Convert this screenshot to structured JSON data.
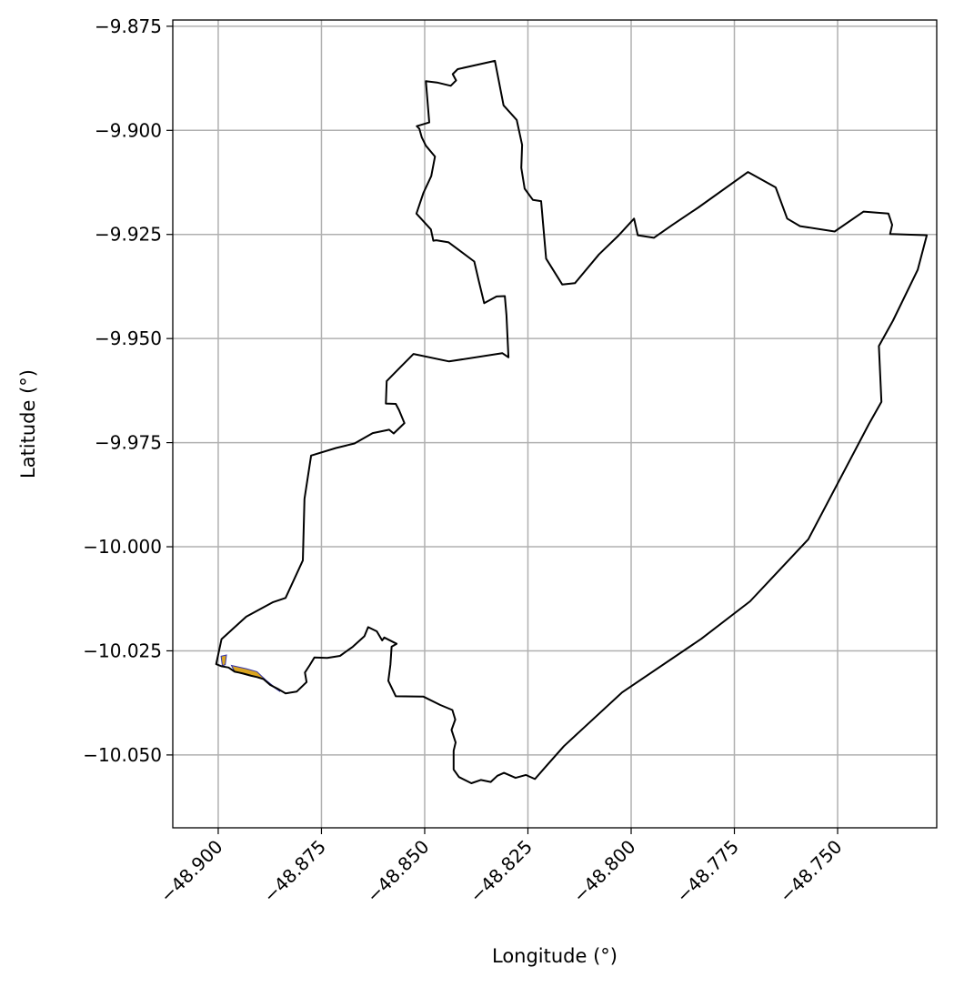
{
  "chart_data": {
    "type": "map",
    "xlabel": "Longitude (°)",
    "ylabel": "Latitude (°)",
    "xlim": [
      -48.911,
      -48.726
    ],
    "ylim": [
      -10.0675,
      -9.8735
    ],
    "grid": true,
    "x_ticks": [
      {
        "value": -48.9,
        "label": "−48.900"
      },
      {
        "value": -48.875,
        "label": "−48.875"
      },
      {
        "value": -48.85,
        "label": "−48.850"
      },
      {
        "value": -48.825,
        "label": "−48.825"
      },
      {
        "value": -48.8,
        "label": "−48.800"
      },
      {
        "value": -48.775,
        "label": "−48.775"
      },
      {
        "value": -48.75,
        "label": "−48.750"
      }
    ],
    "y_ticks": [
      {
        "value": -9.875,
        "label": "−9.875"
      },
      {
        "value": -9.9,
        "label": "−9.900"
      },
      {
        "value": -9.925,
        "label": "−9.925"
      },
      {
        "value": -9.95,
        "label": "−9.950"
      },
      {
        "value": -9.975,
        "label": "−9.975"
      },
      {
        "value": -10.0,
        "label": "−10.000"
      },
      {
        "value": -10.025,
        "label": "−10.025"
      },
      {
        "value": -10.05,
        "label": "−10.050"
      }
    ],
    "boundary": {
      "stroke": "#000000",
      "fill": "none",
      "coords": [
        [
          -48.9005,
          -10.0282
        ],
        [
          -48.8992,
          -10.0222
        ],
        [
          -48.8932,
          -10.0168
        ],
        [
          -48.8867,
          -10.0133
        ],
        [
          -48.8837,
          -10.0123
        ],
        [
          -48.8795,
          -10.0033
        ],
        [
          -48.8791,
          -9.9885
        ],
        [
          -48.8775,
          -9.9781
        ],
        [
          -48.8715,
          -9.9763
        ],
        [
          -48.867,
          -9.9752
        ],
        [
          -48.8626,
          -9.9727
        ],
        [
          -48.8586,
          -9.9719
        ],
        [
          -48.8575,
          -9.9728
        ],
        [
          -48.8549,
          -9.9703
        ],
        [
          -48.8562,
          -9.9672
        ],
        [
          -48.857,
          -9.9657
        ],
        [
          -48.8594,
          -9.9656
        ],
        [
          -48.8592,
          -9.9602
        ],
        [
          -48.8562,
          -9.9572
        ],
        [
          -48.8527,
          -9.9537
        ],
        [
          -48.8441,
          -9.9555
        ],
        [
          -48.8312,
          -9.9535
        ],
        [
          -48.8297,
          -9.9545
        ],
        [
          -48.8302,
          -9.9444
        ],
        [
          -48.8306,
          -9.9398
        ],
        [
          -48.8326,
          -9.9399
        ],
        [
          -48.8356,
          -9.9415
        ],
        [
          -48.8369,
          -9.9362
        ],
        [
          -48.838,
          -9.9315
        ],
        [
          -48.8442,
          -9.9269
        ],
        [
          -48.8472,
          -9.9264
        ],
        [
          -48.8479,
          -9.9265
        ],
        [
          -48.8485,
          -9.9238
        ],
        [
          -48.852,
          -9.92
        ],
        [
          -48.8503,
          -9.915
        ],
        [
          -48.8484,
          -9.911
        ],
        [
          -48.8475,
          -9.9063
        ],
        [
          -48.8497,
          -9.9037
        ],
        [
          -48.8507,
          -9.9017
        ],
        [
          -48.8513,
          -9.8996
        ],
        [
          -48.8519,
          -9.899
        ],
        [
          -48.8489,
          -9.8981
        ],
        [
          -48.8497,
          -9.8882
        ],
        [
          -48.847,
          -9.8885
        ],
        [
          -48.8437,
          -9.8893
        ],
        [
          -48.8424,
          -9.888
        ],
        [
          -48.8432,
          -9.8865
        ],
        [
          -48.842,
          -9.8853
        ],
        [
          -48.833,
          -9.8833
        ],
        [
          -48.8309,
          -9.894
        ],
        [
          -48.8277,
          -9.8975
        ],
        [
          -48.8264,
          -9.9035
        ],
        [
          -48.8266,
          -9.909
        ],
        [
          -48.8258,
          -9.914
        ],
        [
          -48.8238,
          -9.9167
        ],
        [
          -48.8218,
          -9.917
        ],
        [
          -48.8206,
          -9.9308
        ],
        [
          -48.8167,
          -9.937
        ],
        [
          -48.8136,
          -9.9367
        ],
        [
          -48.8078,
          -9.9298
        ],
        [
          -48.803,
          -9.9252
        ],
        [
          -48.7993,
          -9.9212
        ],
        [
          -48.7984,
          -9.9252
        ],
        [
          -48.7945,
          -9.9258
        ],
        [
          -48.79,
          -9.9227
        ],
        [
          -48.7837,
          -9.9185
        ],
        [
          -48.7717,
          -9.91
        ],
        [
          -48.765,
          -9.9137
        ],
        [
          -48.7622,
          -9.9212
        ],
        [
          -48.7591,
          -9.923
        ],
        [
          -48.7507,
          -9.9243
        ],
        [
          -48.7437,
          -9.9195
        ],
        [
          -48.7377,
          -9.92
        ],
        [
          -48.7368,
          -9.9227
        ],
        [
          -48.7373,
          -9.9249
        ],
        [
          -48.7284,
          -9.9252
        ],
        [
          -48.7306,
          -9.9335
        ],
        [
          -48.7366,
          -9.9457
        ],
        [
          -48.74,
          -9.9518
        ],
        [
          -48.7394,
          -9.9652
        ],
        [
          -48.7424,
          -9.9705
        ],
        [
          -48.7571,
          -9.9982
        ],
        [
          -48.7712,
          -10.0131
        ],
        [
          -48.783,
          -10.0221
        ],
        [
          -48.8022,
          -10.035
        ],
        [
          -48.8163,
          -10.0479
        ],
        [
          -48.8206,
          -10.0527
        ],
        [
          -48.8233,
          -10.0558
        ],
        [
          -48.8255,
          -10.0548
        ],
        [
          -48.828,
          -10.0555
        ],
        [
          -48.8308,
          -10.0543
        ],
        [
          -48.8324,
          -10.055
        ],
        [
          -48.834,
          -10.0565
        ],
        [
          -48.8364,
          -10.056
        ],
        [
          -48.8387,
          -10.0568
        ],
        [
          -48.8417,
          -10.0553
        ],
        [
          -48.843,
          -10.0535
        ],
        [
          -48.843,
          -10.049
        ],
        [
          -48.8425,
          -10.047
        ],
        [
          -48.8435,
          -10.044
        ],
        [
          -48.8426,
          -10.0415
        ],
        [
          -48.8433,
          -10.0392
        ],
        [
          -48.8462,
          -10.038
        ],
        [
          -48.8503,
          -10.036
        ],
        [
          -48.857,
          -10.0359
        ],
        [
          -48.8588,
          -10.0322
        ],
        [
          -48.8583,
          -10.0283
        ],
        [
          -48.858,
          -10.024
        ],
        [
          -48.8568,
          -10.0233
        ],
        [
          -48.8598,
          -10.0218
        ],
        [
          -48.8603,
          -10.0225
        ],
        [
          -48.8616,
          -10.0203
        ],
        [
          -48.8637,
          -10.0193
        ],
        [
          -48.8646,
          -10.0215
        ],
        [
          -48.8674,
          -10.024
        ],
        [
          -48.8705,
          -10.0262
        ],
        [
          -48.8736,
          -10.0267
        ],
        [
          -48.8767,
          -10.0266
        ],
        [
          -48.8778,
          -10.0284
        ],
        [
          -48.879,
          -10.0302
        ],
        [
          -48.8786,
          -10.0325
        ],
        [
          -48.881,
          -10.0348
        ],
        [
          -48.8837,
          -10.0352
        ],
        [
          -48.8856,
          -10.0341
        ],
        [
          -48.8874,
          -10.0332
        ],
        [
          -48.889,
          -10.0318
        ],
        [
          -48.8906,
          -10.0313
        ],
        [
          -48.892,
          -10.031
        ],
        [
          -48.8938,
          -10.0305
        ],
        [
          -48.895,
          -10.0302
        ],
        [
          -48.896,
          -10.03
        ],
        [
          -48.8975,
          -10.029
        ],
        [
          -48.8992,
          -10.0287
        ],
        [
          -48.9005,
          -10.0282
        ]
      ]
    },
    "highlight_areas": [
      {
        "fill": "#daa520",
        "stroke": "#3333aa",
        "coords": [
          [
            -48.8993,
            -10.0263
          ],
          [
            -48.898,
            -10.026
          ],
          [
            -48.8983,
            -10.0283
          ],
          [
            -48.899,
            -10.0286
          ],
          [
            -48.8993,
            -10.0263
          ]
        ]
      },
      {
        "fill": "#daa520",
        "stroke": "#3333aa",
        "coords": [
          [
            -48.8968,
            -10.0285
          ],
          [
            -48.8932,
            -10.0293
          ],
          [
            -48.8906,
            -10.03
          ],
          [
            -48.8885,
            -10.032
          ],
          [
            -48.885,
            -10.0348
          ],
          [
            -48.8874,
            -10.0332
          ],
          [
            -48.889,
            -10.0318
          ],
          [
            -48.8906,
            -10.0313
          ],
          [
            -48.8938,
            -10.0305
          ],
          [
            -48.896,
            -10.03
          ],
          [
            -48.8968,
            -10.0285
          ]
        ]
      }
    ]
  }
}
